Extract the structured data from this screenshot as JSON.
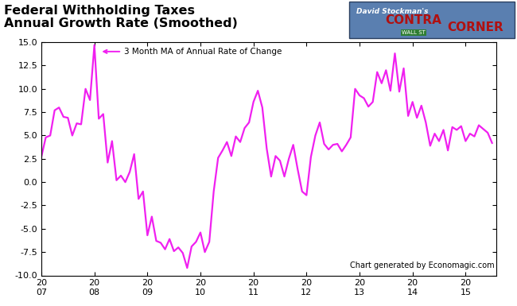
{
  "chart_data": {
    "type": "line",
    "title": "Federal Withholding Taxes\nAnnual Growth Rate (Smoothed)",
    "annotations": [
      {
        "text": "3 Month MA of Annual Rate of Change",
        "x": 2008.1,
        "y": 14.0
      }
    ],
    "source": "Chart generated by Economagic.com",
    "logo": [
      "David Stockman's",
      "CONTRA",
      "WALL ST",
      "CORNER"
    ],
    "x": [
      2007.0,
      2007.083,
      2007.167,
      2007.25,
      2007.333,
      2007.417,
      2007.5,
      2007.583,
      2007.667,
      2007.75,
      2007.833,
      2007.917,
      2008.0,
      2008.083,
      2008.167,
      2008.25,
      2008.333,
      2008.417,
      2008.5,
      2008.583,
      2008.667,
      2008.75,
      2008.833,
      2008.917,
      2009.0,
      2009.083,
      2009.167,
      2009.25,
      2009.333,
      2009.417,
      2009.5,
      2009.583,
      2009.667,
      2009.75,
      2009.833,
      2009.917,
      2010.0,
      2010.083,
      2010.167,
      2010.25,
      2010.333,
      2010.417,
      2010.5,
      2010.583,
      2010.667,
      2010.75,
      2010.833,
      2010.917,
      2011.0,
      2011.083,
      2011.167,
      2011.25,
      2011.333,
      2011.417,
      2011.5,
      2011.583,
      2011.667,
      2011.75,
      2011.833,
      2011.917,
      2012.0,
      2012.083,
      2012.167,
      2012.25,
      2012.333,
      2012.417,
      2012.5,
      2012.583,
      2012.667,
      2012.75,
      2012.833,
      2012.917,
      2013.0,
      2013.083,
      2013.167,
      2013.25,
      2013.333,
      2013.417,
      2013.5,
      2013.583,
      2013.667,
      2013.75,
      2013.833,
      2013.917,
      2014.0,
      2014.083,
      2014.167,
      2014.25,
      2014.333,
      2014.417,
      2014.5,
      2014.583,
      2014.667,
      2014.75,
      2014.833,
      2014.917,
      2015.0,
      2015.083,
      2015.167,
      2015.25,
      2015.333,
      2015.417,
      2015.5
    ],
    "series": [
      {
        "name": "3 Month MA of Annual Rate of Change",
        "color": "#f020f0",
        "values": [
          2.7,
          4.8,
          5.0,
          7.7,
          8.0,
          7.0,
          6.9,
          5.0,
          6.3,
          6.2,
          10.0,
          8.8,
          14.7,
          6.8,
          7.3,
          2.1,
          4.4,
          0.2,
          0.7,
          0.0,
          1.1,
          3.0,
          -1.8,
          -1.0,
          -5.7,
          -3.7,
          -6.3,
          -6.5,
          -7.2,
          -6.1,
          -7.4,
          -7.0,
          -7.6,
          -9.2,
          -6.9,
          -6.4,
          -5.4,
          -7.5,
          -6.4,
          -1.0,
          2.6,
          3.4,
          4.3,
          2.8,
          4.9,
          4.3,
          5.8,
          6.4,
          8.6,
          9.8,
          8.0,
          3.6,
          0.6,
          2.8,
          2.3,
          0.6,
          2.5,
          4.0,
          1.4,
          -1.0,
          -1.4,
          2.7,
          5.0,
          6.4,
          4.1,
          3.5,
          4.0,
          4.1,
          3.3,
          4.0,
          4.8,
          10.0,
          9.3,
          9.0,
          8.1,
          8.6,
          11.8,
          10.6,
          12.0,
          9.8,
          13.8,
          9.7,
          12.2,
          7.1,
          8.6,
          6.9,
          8.2,
          6.4,
          3.9,
          5.2,
          4.4,
          5.6,
          3.4,
          5.9,
          5.6,
          6.0,
          4.4,
          5.2,
          4.9,
          6.1,
          5.7,
          5.3,
          4.2
        ]
      }
    ],
    "xlim": [
      2007.0,
      2015.58
    ],
    "xticks": [
      {
        "value": 2007,
        "label": "20\n07"
      },
      {
        "value": 2008,
        "label": "20\n08"
      },
      {
        "value": 2009,
        "label": "20\n09"
      },
      {
        "value": 2010,
        "label": "20\n10"
      },
      {
        "value": 2011,
        "label": "20\n11"
      },
      {
        "value": 2012,
        "label": "20\n12"
      },
      {
        "value": 2013,
        "label": "20\n13"
      },
      {
        "value": 2014,
        "label": "20\n14"
      },
      {
        "value": 2015,
        "label": "20\n15"
      }
    ],
    "ylim": [
      -10.0,
      15.0
    ],
    "yticks": [
      {
        "value": -10,
        "label": "-10.0"
      },
      {
        "value": -7.5,
        "label": "-7.5"
      },
      {
        "value": -5,
        "label": "-5.0"
      },
      {
        "value": -2.5,
        "label": "-2.5"
      },
      {
        "value": 0,
        "label": "0.0"
      },
      {
        "value": 2.5,
        "label": "2.5"
      },
      {
        "value": 5,
        "label": "5.0"
      },
      {
        "value": 7.5,
        "label": "7.5"
      },
      {
        "value": 10,
        "label": "10.0"
      },
      {
        "value": 12.5,
        "label": "12.5"
      },
      {
        "value": 15,
        "label": "15.0"
      }
    ],
    "grid": false
  }
}
